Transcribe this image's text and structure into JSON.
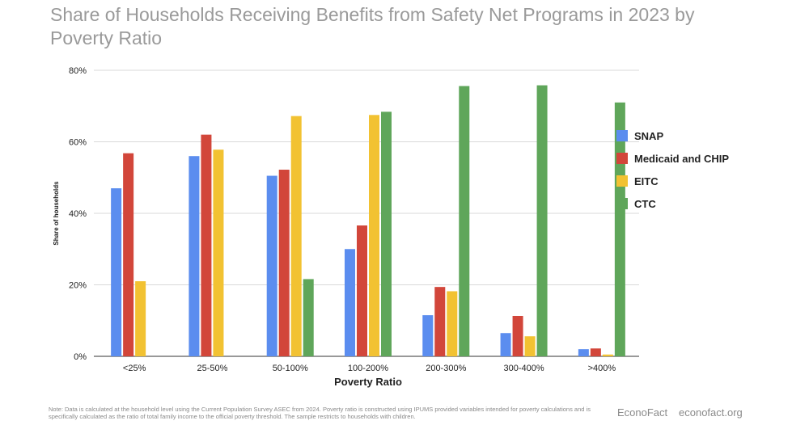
{
  "title": "Share of Households Receiving Benefits from Safety Net Programs in 2023 by Poverty Ratio",
  "chart_data": {
    "type": "bar",
    "title": "Share of Households Receiving Benefits from Safety Net Programs in 2023 by Poverty Ratio",
    "xlabel": "Poverty Ratio",
    "ylabel": "Share of households",
    "ylim": [
      0,
      80
    ],
    "yticks": [
      "0%",
      "20%",
      "40%",
      "60%",
      "80%"
    ],
    "ytick_values": [
      0,
      20,
      40,
      60,
      80
    ],
    "categories": [
      "<25%",
      "25-50%",
      "50-100%",
      "100-200%",
      "200-300%",
      "300-400%",
      ">400%"
    ],
    "series": [
      {
        "name": "SNAP",
        "color": "#5b8def",
        "values": [
          47,
          56,
          50.5,
          30,
          11.5,
          6.5,
          2
        ]
      },
      {
        "name": "Medicaid and CHIP",
        "color": "#d2463a",
        "values": [
          56.8,
          62,
          52.2,
          36.6,
          19.4,
          11.3,
          2.2
        ]
      },
      {
        "name": "EITC",
        "color": "#f2c232",
        "values": [
          21,
          57.8,
          67.2,
          67.5,
          18.2,
          5.6,
          0.5
        ]
      },
      {
        "name": "CTC",
        "color": "#5fa65a",
        "values": [
          0,
          0,
          21.6,
          68.4,
          75.6,
          75.8,
          71
        ]
      }
    ],
    "legend_position": "right",
    "grid": true
  },
  "note": "Note: Data is calculated at the household level using the Current Population Survey ASEC from 2024. Poverty ratio is constructed using IPUMS provided variables intended for poverty calculations and is specifically calculated as the ratio of total family income to the official poverty threshold. The sample restricts to households with children.",
  "brand": "EconoFact",
  "brand_url": "econofact.org"
}
